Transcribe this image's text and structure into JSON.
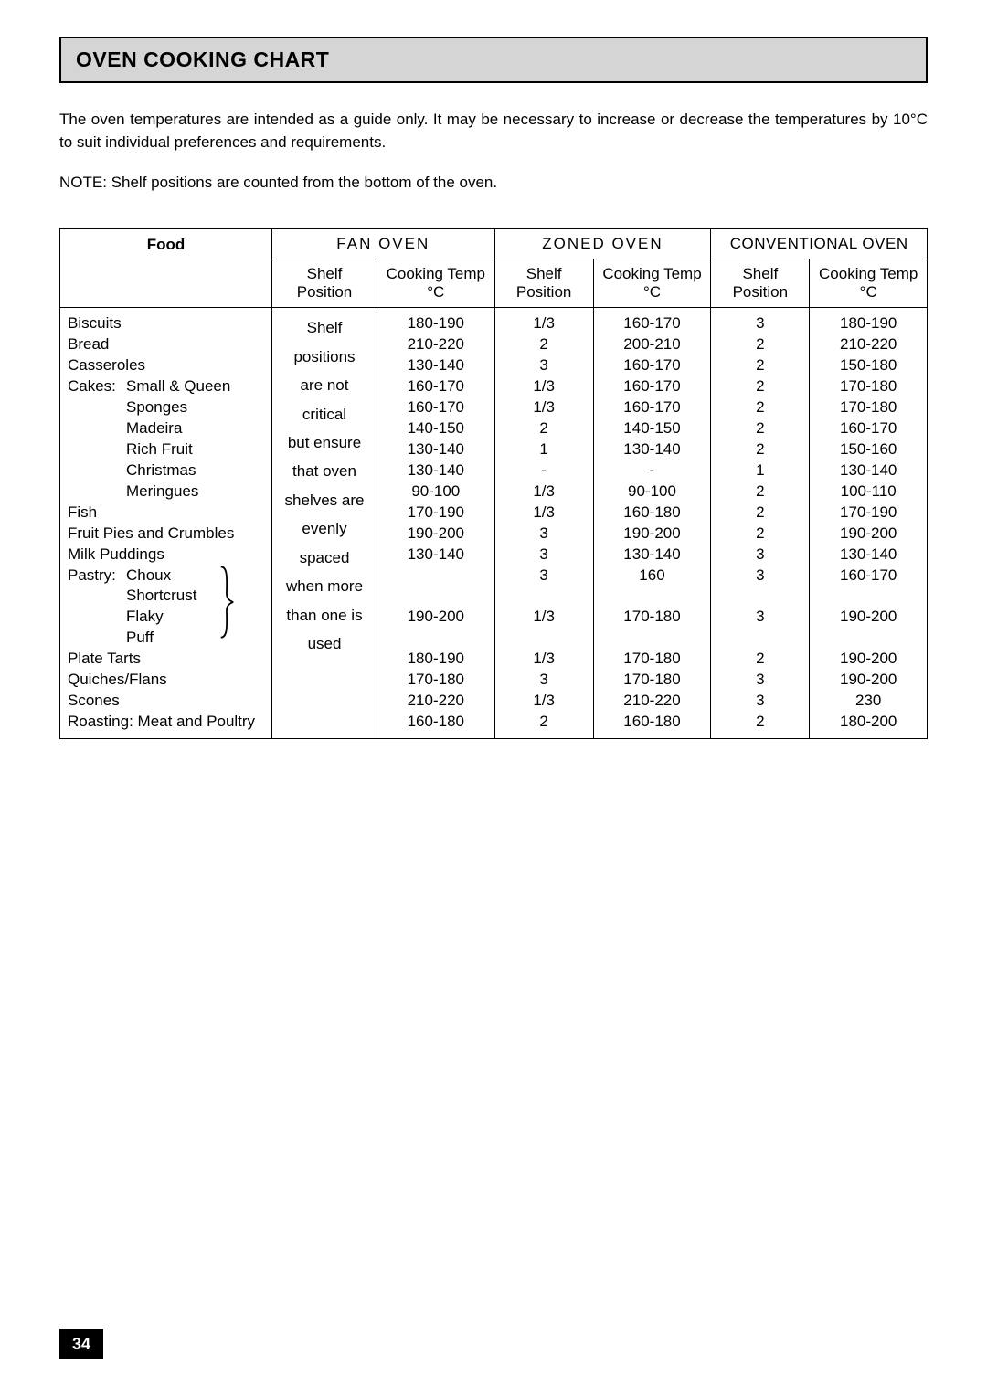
{
  "title": "OVEN COOKING CHART",
  "intro": "The  oven  temperatures  are  intended  as  a  guide  only.  It  may  be  necessary  to  increase  or  decrease  the temperatures by 10°C to suit individual preferences and requirements.",
  "note": "NOTE: Shelf positions are counted from the bottom of the oven.",
  "page_number": "34",
  "columns": {
    "food": "Food",
    "groups": [
      {
        "label": "FAN  OVEN",
        "sub": [
          "Shelf Position",
          "Cooking Temp °C"
        ]
      },
      {
        "label": "ZONED  OVEN",
        "sub": [
          "Shelf Position",
          "Cooking Temp °C"
        ]
      },
      {
        "label": "CONVENTIONAL OVEN",
        "sub": [
          "Shelf Position",
          "Cooking Temp °C"
        ]
      }
    ]
  },
  "fan_shelf_note": [
    "Shelf",
    "positions",
    "are not",
    "critical",
    "but ensure",
    "that oven",
    "shelves  are",
    "evenly",
    "spaced",
    "when more",
    "than one is",
    "used"
  ],
  "foods": [
    {
      "label": "Biscuits",
      "indent": 0
    },
    {
      "label": "Bread",
      "indent": 0
    },
    {
      "label": "Casseroles",
      "indent": 0
    },
    {
      "label": "Cakes:",
      "sub": "Small & Queen",
      "indent": 0
    },
    {
      "label": "",
      "sub": "Sponges",
      "indent": 1
    },
    {
      "label": "",
      "sub": "Madeira",
      "indent": 1
    },
    {
      "label": "",
      "sub": "Rich Fruit",
      "indent": 1
    },
    {
      "label": "",
      "sub": "Christmas",
      "indent": 1
    },
    {
      "label": "",
      "sub": "Meringues",
      "indent": 1
    },
    {
      "label": "Fish",
      "indent": 0
    },
    {
      "label": "Fruit Pies and Crumbles",
      "indent": 0
    },
    {
      "label": "Milk Puddings",
      "indent": 0
    },
    {
      "label": "Pastry:",
      "sub": "Choux",
      "indent": 0,
      "brace_start": true
    },
    {
      "label": "",
      "sub": "Shortcrust",
      "indent": 1
    },
    {
      "label": "",
      "sub": "Flaky",
      "indent": 1
    },
    {
      "label": "",
      "sub": "Puff",
      "indent": 1,
      "brace_end": true
    },
    {
      "label": "Plate Tarts",
      "indent": 0
    },
    {
      "label": "Quiches/Flans",
      "indent": 0
    },
    {
      "label": "Scones",
      "indent": 0
    },
    {
      "label": "Roasting: Meat and Poultry",
      "indent": 0
    }
  ],
  "fan_temp": [
    "180-190",
    "210-220",
    "130-140",
    "160-170",
    "160-170",
    "140-150",
    "130-140",
    "130-140",
    "90-100",
    "170-190",
    "190-200",
    "130-140",
    "",
    "",
    "190-200",
    "",
    "180-190",
    "170-180",
    "210-220",
    "160-180"
  ],
  "zoned_pos": [
    "1/3",
    "2",
    "3",
    "1/3",
    "1/3",
    "2",
    "1",
    "-",
    "1/3",
    "1/3",
    "3",
    "3",
    "3",
    "",
    "1/3",
    "",
    "1/3",
    "3",
    "1/3",
    "2"
  ],
  "zoned_temp": [
    "160-170",
    "200-210",
    "160-170",
    "160-170",
    "160-170",
    "140-150",
    "130-140",
    "-",
    "90-100",
    "160-180",
    "190-200",
    "130-140",
    "160",
    "",
    "170-180",
    "",
    "170-180",
    "170-180",
    "210-220",
    "160-180"
  ],
  "conv_pos": [
    "3",
    "2",
    "2",
    "2",
    "2",
    "2",
    "2",
    "1",
    "2",
    "2",
    "2",
    "3",
    "3",
    "",
    "3",
    "",
    "2",
    "3",
    "3",
    "2"
  ],
  "conv_temp": [
    "180-190",
    "210-220",
    "150-180",
    "170-180",
    "170-180",
    "160-170",
    "150-160",
    "130-140",
    "100-110",
    "170-190",
    "190-200",
    "130-140",
    "160-170",
    "",
    "190-200",
    "",
    "190-200",
    "190-200",
    "230",
    "180-200"
  ]
}
